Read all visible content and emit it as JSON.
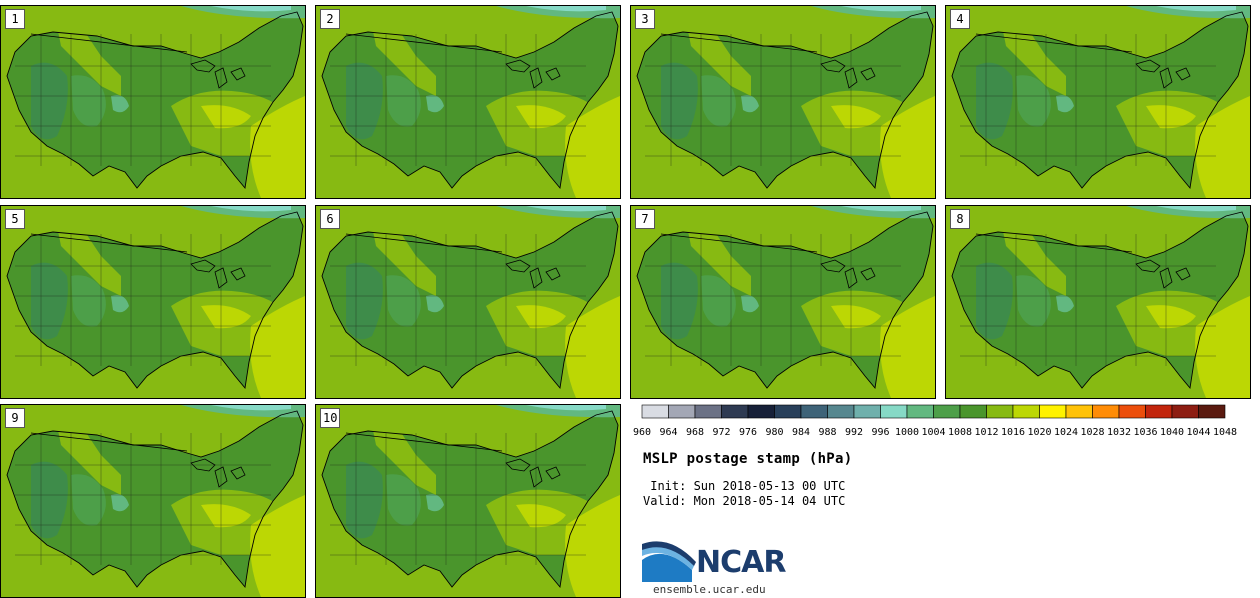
{
  "panels": [
    {
      "label": "1"
    },
    {
      "label": "2"
    },
    {
      "label": "3"
    },
    {
      "label": "4"
    },
    {
      "label": "5"
    },
    {
      "label": "6"
    },
    {
      "label": "7"
    },
    {
      "label": "8"
    },
    {
      "label": "9"
    },
    {
      "label": "10"
    }
  ],
  "colorbar": {
    "labels": [
      "960",
      "964",
      "968",
      "972",
      "976",
      "980",
      "984",
      "988",
      "992",
      "996",
      "1000",
      "1004",
      "1008",
      "1012",
      "1016",
      "1020",
      "1024",
      "1028",
      "1032",
      "1036",
      "1040",
      "1044",
      "1048"
    ],
    "colors": [
      "#d9dce3",
      "#a3a7b5",
      "#6b7185",
      "#2e3a52",
      "#172038",
      "#283f5a",
      "#3e6378",
      "#56878f",
      "#6fb0ac",
      "#86d9c6",
      "#62b880",
      "#4d9f49",
      "#4a952c",
      "#87ba12",
      "#bcd704",
      "#fff200",
      "#ffc208",
      "#ff8c06",
      "#ec4e0b",
      "#c2250c",
      "#8d1d12",
      "#5a1a10"
    ]
  },
  "title": "MSLP postage stamp (hPa)",
  "init": " Init: Sun 2018-05-13 00 UTC",
  "valid": "Valid: Mon 2018-05-14 04 UTC",
  "logo": {
    "text": "NCAR",
    "color": "#1c3d6d",
    "accent": "#2f7dbf"
  },
  "site": "ensemble.ucar.edu"
}
